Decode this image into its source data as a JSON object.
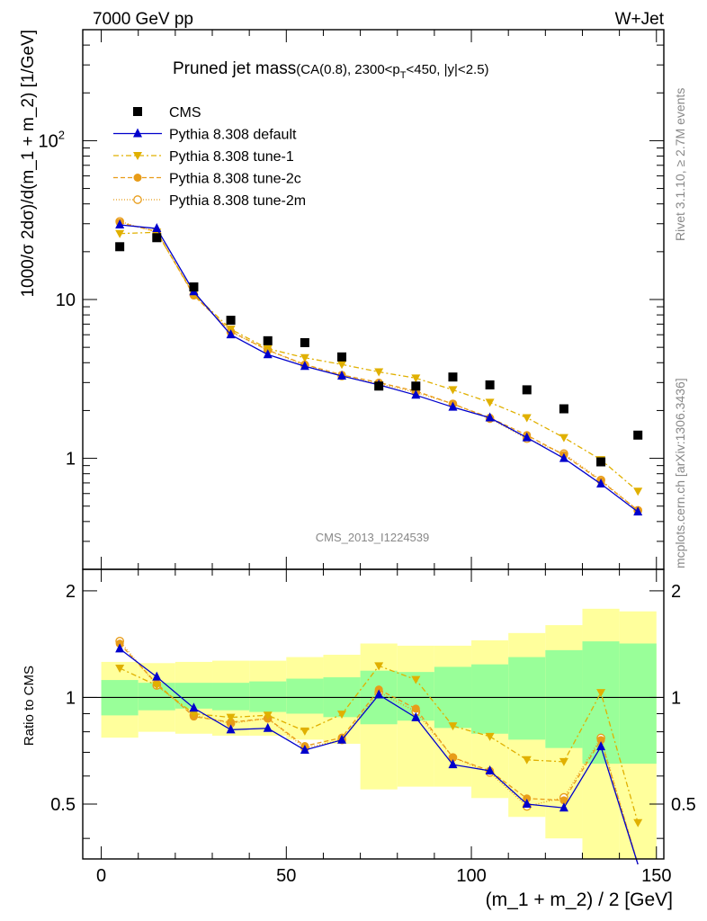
{
  "header": {
    "left": "7000 GeV pp",
    "right": "W+Jet"
  },
  "side": {
    "top": "Rivet 3.1.10, ≥ 2.7M events",
    "bottom": "mcplots.cern.ch [arXiv:1306.3436]"
  },
  "watermark": "CMS_2013_I1224539",
  "title": {
    "main": "Pruned jet mass",
    "cond": "(CA(0.8), 2300<p",
    "sub": "T",
    "cond2": "<450, |y|<2.5)"
  },
  "chart_data": {
    "type": "scatter",
    "xlabel": "(m_1 + m_2) / 2 [GeV]",
    "ylabel": "1000/σ 2dσ)/d(m_1 + m_2) [1/GeV]",
    "ratio_ylabel": "Ratio to CMS",
    "xlim": [
      -5,
      152
    ],
    "ylim": [
      0.2,
      500
    ],
    "ratio_ylim": [
      0.35,
      2.3
    ],
    "yscale": "log",
    "ratio_yscale": "log",
    "x_ticks": [
      0,
      50,
      100,
      150
    ],
    "y_ticks": [
      {
        "v": 1,
        "label": "1"
      },
      {
        "v": 10,
        "label": "10"
      },
      {
        "v": 100,
        "label": "10",
        "sup": "2"
      }
    ],
    "ratio_ticks": [
      {
        "v": 0.5,
        "label": "0.5"
      },
      {
        "v": 1,
        "label": "1"
      },
      {
        "v": 2,
        "label": "2"
      }
    ],
    "x": [
      5,
      15,
      25,
      35,
      45,
      55,
      65,
      75,
      85,
      95,
      105,
      115,
      125,
      135,
      145
    ],
    "bins": [
      0,
      10,
      20,
      30,
      40,
      50,
      60,
      70,
      80,
      90,
      100,
      110,
      120,
      130,
      140,
      150
    ],
    "cms": [
      21.5,
      24.5,
      12.0,
      7.4,
      5.5,
      5.35,
      4.35,
      2.85,
      2.85,
      3.25,
      2.9,
      2.7,
      2.05,
      0.95,
      1.4
    ],
    "band_green": [
      [
        0.89,
        1.12
      ],
      [
        0.92,
        1.1
      ],
      [
        0.93,
        1.1
      ],
      [
        0.92,
        1.1
      ],
      [
        0.91,
        1.11
      ],
      [
        0.9,
        1.13
      ],
      [
        0.88,
        1.14
      ],
      [
        0.84,
        1.19
      ],
      [
        0.86,
        1.18
      ],
      [
        0.82,
        1.22
      ],
      [
        0.79,
        1.24
      ],
      [
        0.76,
        1.3
      ],
      [
        0.72,
        1.36
      ],
      [
        0.65,
        1.44
      ],
      [
        0.65,
        1.42
      ]
    ],
    "band_yellow": [
      [
        0.77,
        1.26
      ],
      [
        0.8,
        1.25
      ],
      [
        0.79,
        1.26
      ],
      [
        0.78,
        1.27
      ],
      [
        0.78,
        1.27
      ],
      [
        0.76,
        1.3
      ],
      [
        0.74,
        1.32
      ],
      [
        0.55,
        1.42
      ],
      [
        0.56,
        1.4
      ],
      [
        0.56,
        1.4
      ],
      [
        0.52,
        1.45
      ],
      [
        0.46,
        1.52
      ],
      [
        0.4,
        1.6
      ],
      [
        0.3,
        1.78
      ],
      [
        0.3,
        1.75
      ]
    ],
    "series": [
      {
        "name": "CMS",
        "key": "cms",
        "color": "#000000",
        "marker": "square",
        "dash": ""
      },
      {
        "name": "Pythia 8.308 default",
        "color": "#0000cc",
        "marker": "triangle-up",
        "dash": "",
        "values": [
          29.5,
          28.0,
          11.2,
          6.0,
          4.5,
          3.8,
          3.3,
          2.9,
          2.5,
          2.1,
          1.8,
          1.35,
          1.0,
          0.69,
          0.46
        ]
      },
      {
        "name": "Pythia 8.308 tune-1",
        "color": "#e0b000",
        "marker": "triangle-down",
        "dash": "6,3,2,3",
        "values": [
          26.0,
          26.5,
          10.8,
          6.5,
          4.9,
          4.3,
          3.9,
          3.5,
          3.2,
          2.7,
          2.25,
          1.8,
          1.35,
          0.98,
          0.62
        ]
      },
      {
        "name": "Pythia 8.308 tune-2c",
        "color": "#e89c18",
        "marker": "circle-filled",
        "dash": "5,3",
        "values": [
          30.5,
          26.8,
          10.6,
          6.3,
          4.8,
          3.9,
          3.35,
          3.0,
          2.65,
          2.2,
          1.8,
          1.4,
          1.05,
          0.72,
          0.47
        ]
      },
      {
        "name": "Pythia 8.308 tune-2m",
        "color": "#e89c18",
        "marker": "circle-open",
        "dash": "1,2",
        "values": [
          31.0,
          26.5,
          10.7,
          6.25,
          4.8,
          3.85,
          3.3,
          2.95,
          2.6,
          2.2,
          1.78,
          1.33,
          1.07,
          0.73,
          0.47
        ]
      }
    ],
    "legend_position": "top-left"
  }
}
